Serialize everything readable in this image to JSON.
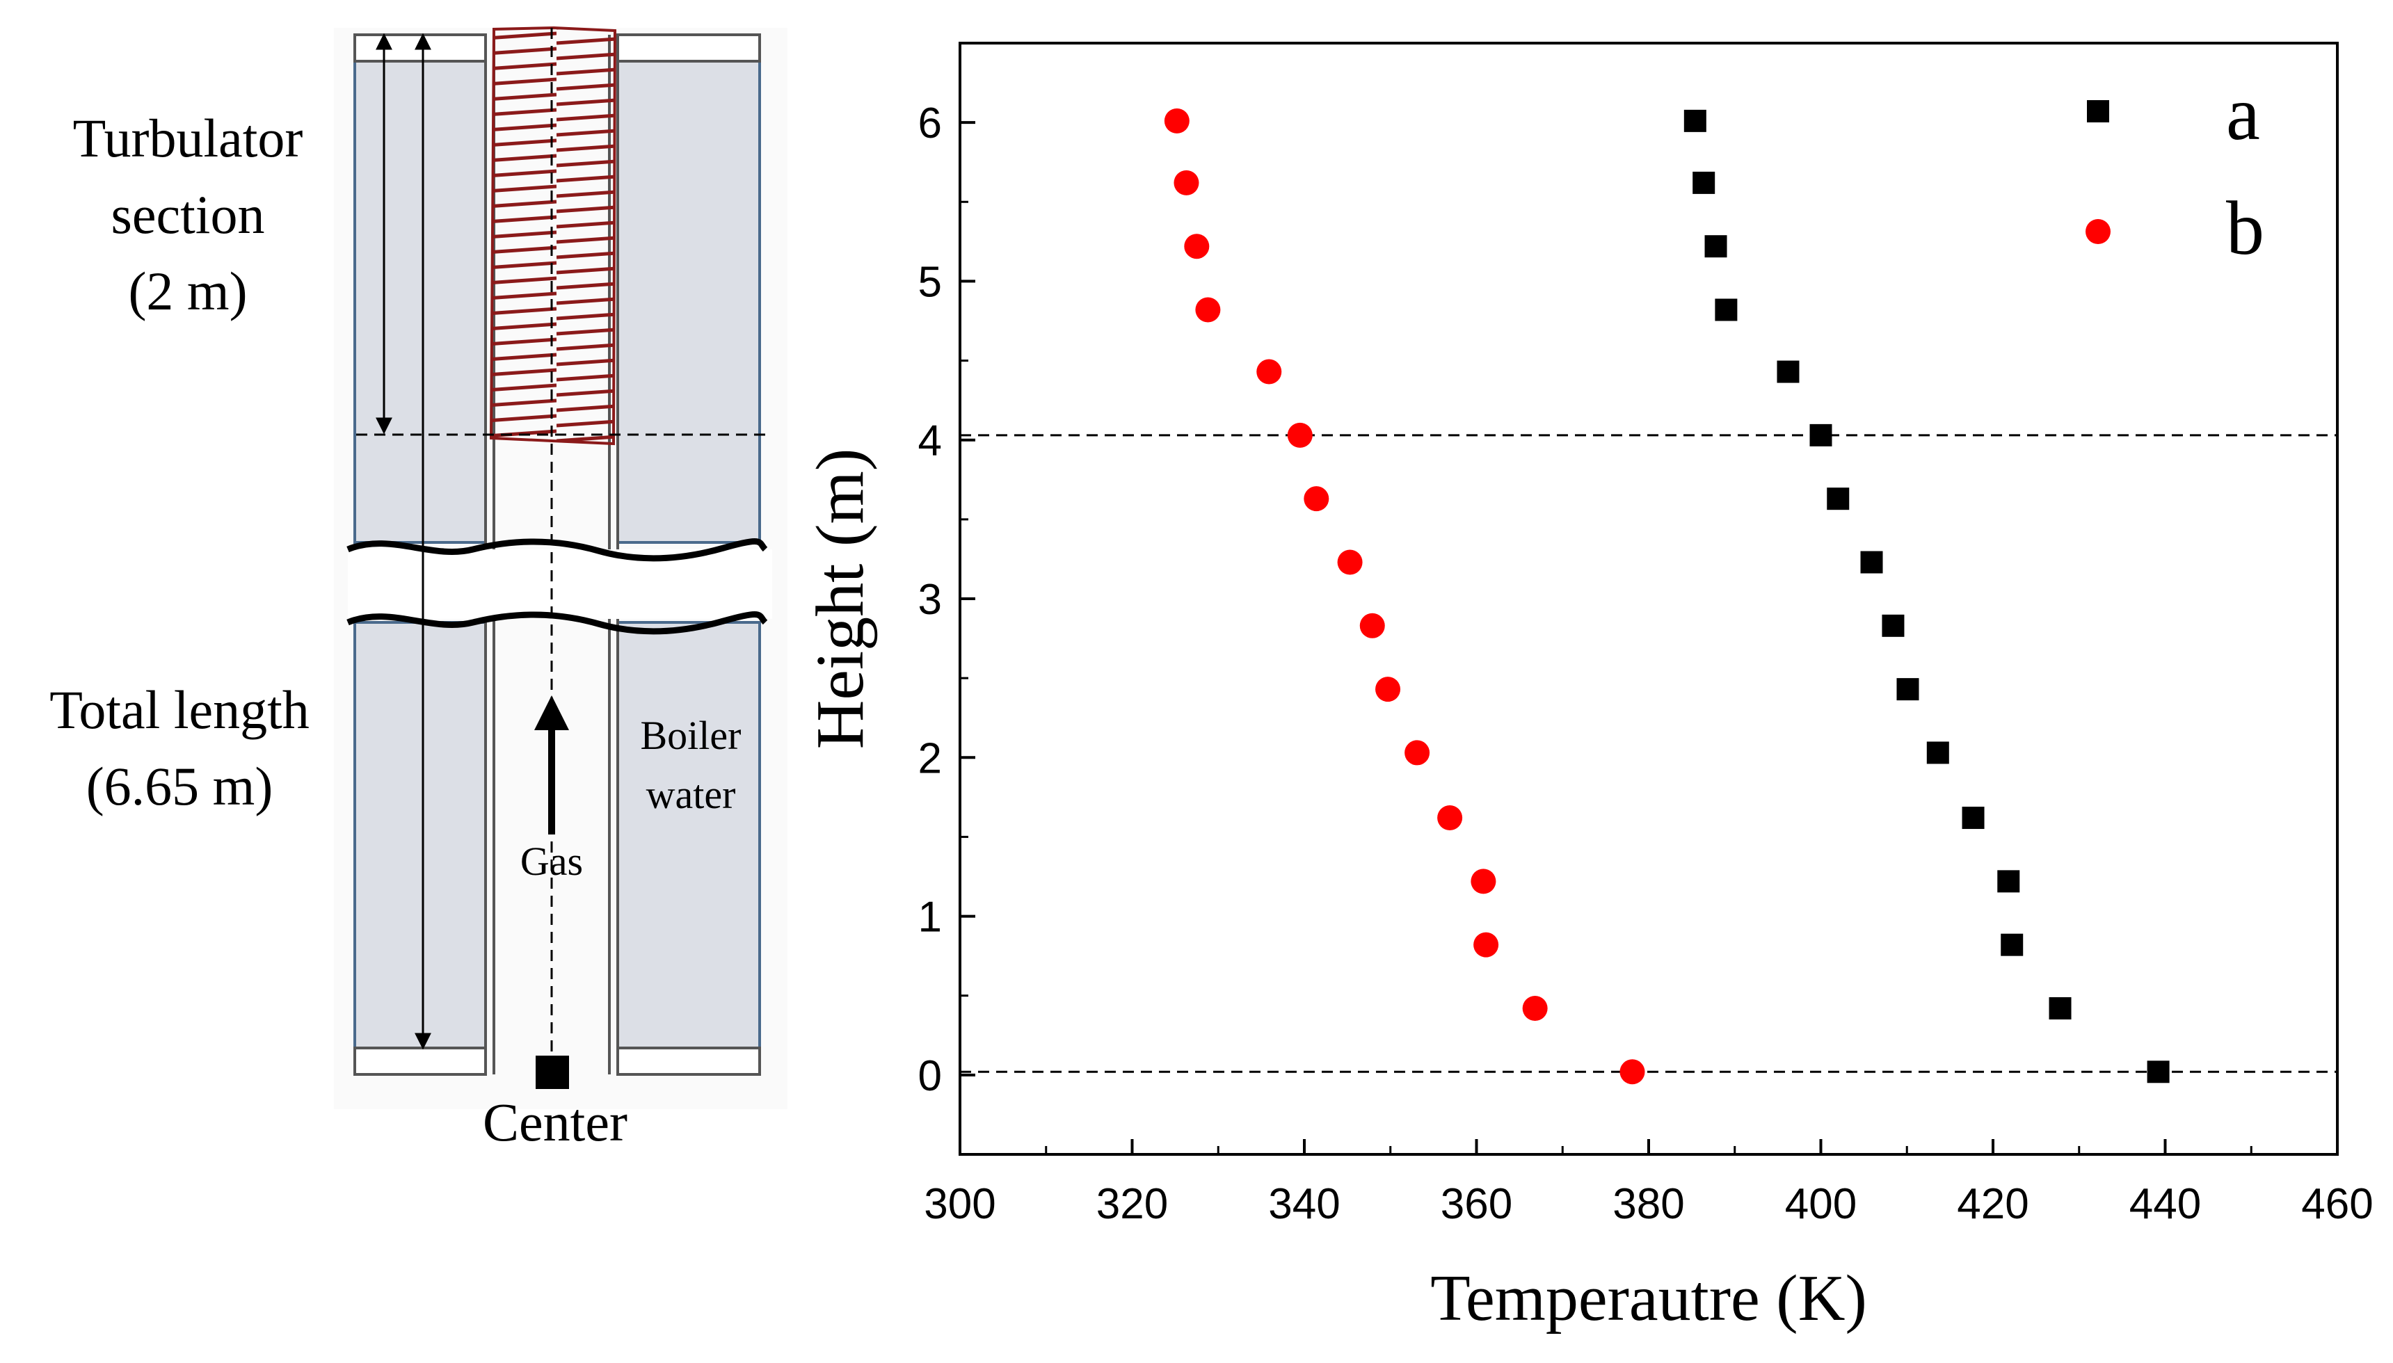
{
  "diagram": {
    "turbulator_label": [
      "Turbulator",
      "section",
      "(2 m)"
    ],
    "total_label": [
      "Total length",
      "(6.65 m)"
    ],
    "boiler_label": [
      "Boiler",
      "water"
    ],
    "gas_label": "Gas",
    "center_label": "Center"
  },
  "chart_data": {
    "type": "scatter",
    "title": "",
    "xlabel": "Temperautre (K)",
    "ylabel": "Height (m)",
    "xlim": [
      300,
      460
    ],
    "ylim": [
      -0.5,
      6.5
    ],
    "xticks": [
      300,
      320,
      340,
      360,
      380,
      400,
      420,
      440,
      460
    ],
    "yticks": [
      0,
      1,
      2,
      3,
      4,
      5,
      6
    ],
    "reference_lines_y": [
      0.02,
      4.03
    ],
    "legend_position": "top-right",
    "series": [
      {
        "name": "a",
        "marker": "square",
        "color": "#000000",
        "x": [
          385.4,
          386.4,
          387.8,
          389.0,
          396.2,
          400.0,
          402.0,
          405.9,
          408.4,
          410.1,
          413.6,
          417.7,
          421.8,
          422.2,
          427.8,
          439.2
        ],
        "y": [
          6.01,
          5.62,
          5.22,
          4.82,
          4.43,
          4.03,
          3.63,
          3.23,
          2.83,
          2.43,
          2.03,
          1.62,
          1.22,
          0.82,
          0.42,
          0.02
        ]
      },
      {
        "name": "b",
        "marker": "circle",
        "color": "#ff0000",
        "x": [
          325.2,
          326.3,
          327.5,
          328.8,
          335.9,
          339.5,
          341.4,
          345.3,
          347.9,
          349.7,
          353.1,
          356.9,
          360.8,
          361.1,
          366.8,
          378.1
        ],
        "y": [
          6.01,
          5.62,
          5.22,
          4.82,
          4.43,
          4.03,
          3.63,
          3.23,
          2.83,
          2.43,
          2.03,
          1.62,
          1.22,
          0.82,
          0.42,
          0.02
        ]
      }
    ]
  }
}
